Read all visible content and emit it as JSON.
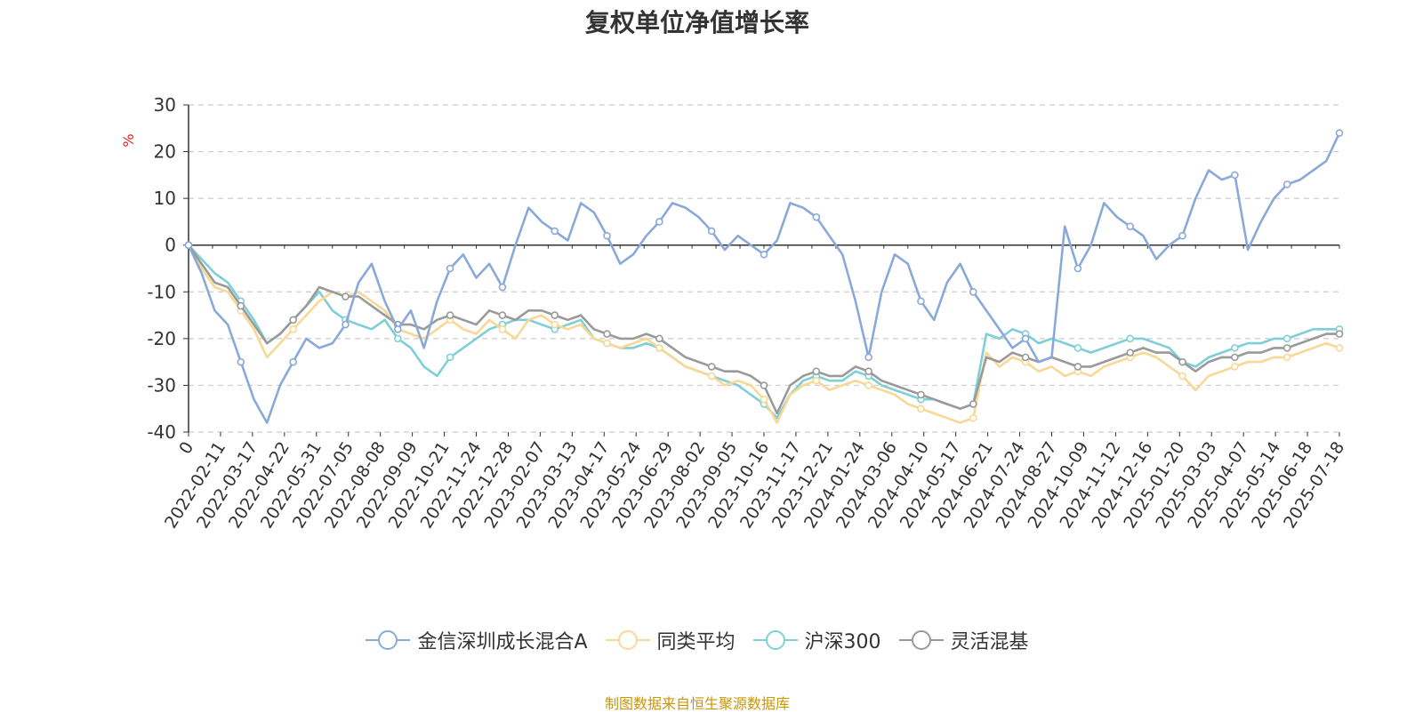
{
  "chart_data": {
    "type": "line",
    "title": "复权单位净值增长率",
    "ylabel": "%",
    "xlabel": "",
    "ylim": [
      -40,
      30
    ],
    "yticks": [
      -40,
      -30,
      -20,
      -10,
      0,
      10,
      20,
      30
    ],
    "grid": true,
    "legend_position": "bottom",
    "x_labels": [
      "0",
      "2022-02-11",
      "2022-03-17",
      "2022-04-22",
      "2022-05-31",
      "2022-07-05",
      "2022-08-08",
      "2022-09-09",
      "2022-10-21",
      "2022-11-24",
      "2022-12-28",
      "2023-02-07",
      "2023-03-13",
      "2023-04-17",
      "2023-05-24",
      "2023-06-29",
      "2023-08-02",
      "2023-09-05",
      "2023-10-16",
      "2023-11-17",
      "2023-12-21",
      "2024-01-24",
      "2024-03-06",
      "2024-04-10",
      "2024-05-17",
      "2024-06-21",
      "2024-07-24",
      "2024-08-27",
      "2024-10-09",
      "2024-11-12",
      "2024-12-16",
      "2025-01-20",
      "2025-03-03",
      "2025-04-07",
      "2025-05-14",
      "2025-06-18",
      "2025-07-18"
    ],
    "series": [
      {
        "name": "金信深圳成长混合A",
        "color": "#8aa9d8",
        "values": [
          0,
          -6,
          -14,
          -17,
          -25,
          -33,
          -38,
          -30,
          -25,
          -20,
          -22,
          -21,
          -17,
          -8,
          -4,
          -12,
          -18,
          -14,
          -22,
          -12,
          -5,
          -2,
          -7,
          -4,
          -9,
          0,
          8,
          5,
          3,
          1,
          9,
          7,
          2,
          -4,
          -2,
          2,
          5,
          9,
          8,
          6,
          3,
          -1,
          2,
          0,
          -2,
          1,
          9,
          8,
          6,
          2,
          -2,
          -12,
          -24,
          -10,
          -2,
          -4,
          -12,
          -16,
          -8,
          -4,
          -10,
          -14,
          -18,
          -22,
          -20,
          -25,
          -24,
          4,
          -5,
          0,
          9,
          6,
          4,
          2,
          -3,
          0,
          2,
          10,
          16,
          14,
          15,
          -1,
          5,
          10,
          13,
          14,
          16,
          18,
          24
        ]
      },
      {
        "name": "同类平均",
        "color": "#f9d896",
        "values": [
          0,
          -5,
          -9,
          -10,
          -14,
          -18,
          -24,
          -21,
          -18,
          -15,
          -12,
          -10,
          -11,
          -10,
          -12,
          -14,
          -18,
          -19,
          -20,
          -18,
          -16,
          -18,
          -19,
          -16,
          -18,
          -20,
          -16,
          -15,
          -17,
          -18,
          -17,
          -20,
          -21,
          -22,
          -21,
          -20,
          -22,
          -24,
          -26,
          -27,
          -28,
          -30,
          -29,
          -30,
          -33,
          -38,
          -32,
          -30,
          -29,
          -31,
          -30,
          -29,
          -30,
          -31,
          -32,
          -34,
          -35,
          -36,
          -37,
          -38,
          -37,
          -23,
          -26,
          -24,
          -25,
          -27,
          -26,
          -28,
          -27,
          -28,
          -26,
          -25,
          -24,
          -23,
          -24,
          -26,
          -28,
          -31,
          -28,
          -27,
          -26,
          -25,
          -25,
          -24,
          -24,
          -23,
          -22,
          -21,
          -22
        ]
      },
      {
        "name": "沪深300",
        "color": "#7fcfd6",
        "values": [
          0,
          -3,
          -6,
          -8,
          -12,
          -16,
          -21,
          -19,
          -16,
          -13,
          -10,
          -14,
          -16,
          -17,
          -18,
          -16,
          -20,
          -22,
          -26,
          -28,
          -24,
          -22,
          -20,
          -18,
          -17,
          -16,
          -16,
          -17,
          -18,
          -17,
          -16,
          -20,
          -21,
          -22,
          -22,
          -21,
          -22,
          -24,
          -26,
          -27,
          -28,
          -29,
          -30,
          -32,
          -34,
          -37,
          -32,
          -29,
          -28,
          -29,
          -29,
          -27,
          -28,
          -30,
          -31,
          -32,
          -33,
          -33,
          -34,
          -35,
          -34,
          -19,
          -20,
          -18,
          -19,
          -21,
          -20,
          -21,
          -22,
          -23,
          -22,
          -21,
          -20,
          -20,
          -21,
          -22,
          -25,
          -26,
          -24,
          -23,
          -22,
          -21,
          -21,
          -20,
          -20,
          -19,
          -18,
          -18,
          -18
        ]
      },
      {
        "name": "灵活混基",
        "color": "#9a9a9a",
        "values": [
          0,
          -4,
          -8,
          -9,
          -13,
          -17,
          -21,
          -19,
          -16,
          -13,
          -9,
          -10,
          -11,
          -11,
          -13,
          -15,
          -17,
          -17,
          -18,
          -16,
          -15,
          -16,
          -17,
          -14,
          -15,
          -16,
          -14,
          -14,
          -15,
          -16,
          -15,
          -18,
          -19,
          -20,
          -20,
          -19,
          -20,
          -22,
          -24,
          -25,
          -26,
          -27,
          -27,
          -28,
          -30,
          -36,
          -30,
          -28,
          -27,
          -28,
          -28,
          -26,
          -27,
          -29,
          -30,
          -31,
          -32,
          -33,
          -34,
          -35,
          -34,
          -24,
          -25,
          -23,
          -24,
          -25,
          -24,
          -25,
          -26,
          -26,
          -25,
          -24,
          -23,
          -22,
          -23,
          -23,
          -25,
          -27,
          -25,
          -24,
          -24,
          -23,
          -23,
          -22,
          -22,
          -21,
          -20,
          -19,
          -19
        ]
      }
    ]
  },
  "source_note": "制图数据来自恒生聚源数据库"
}
